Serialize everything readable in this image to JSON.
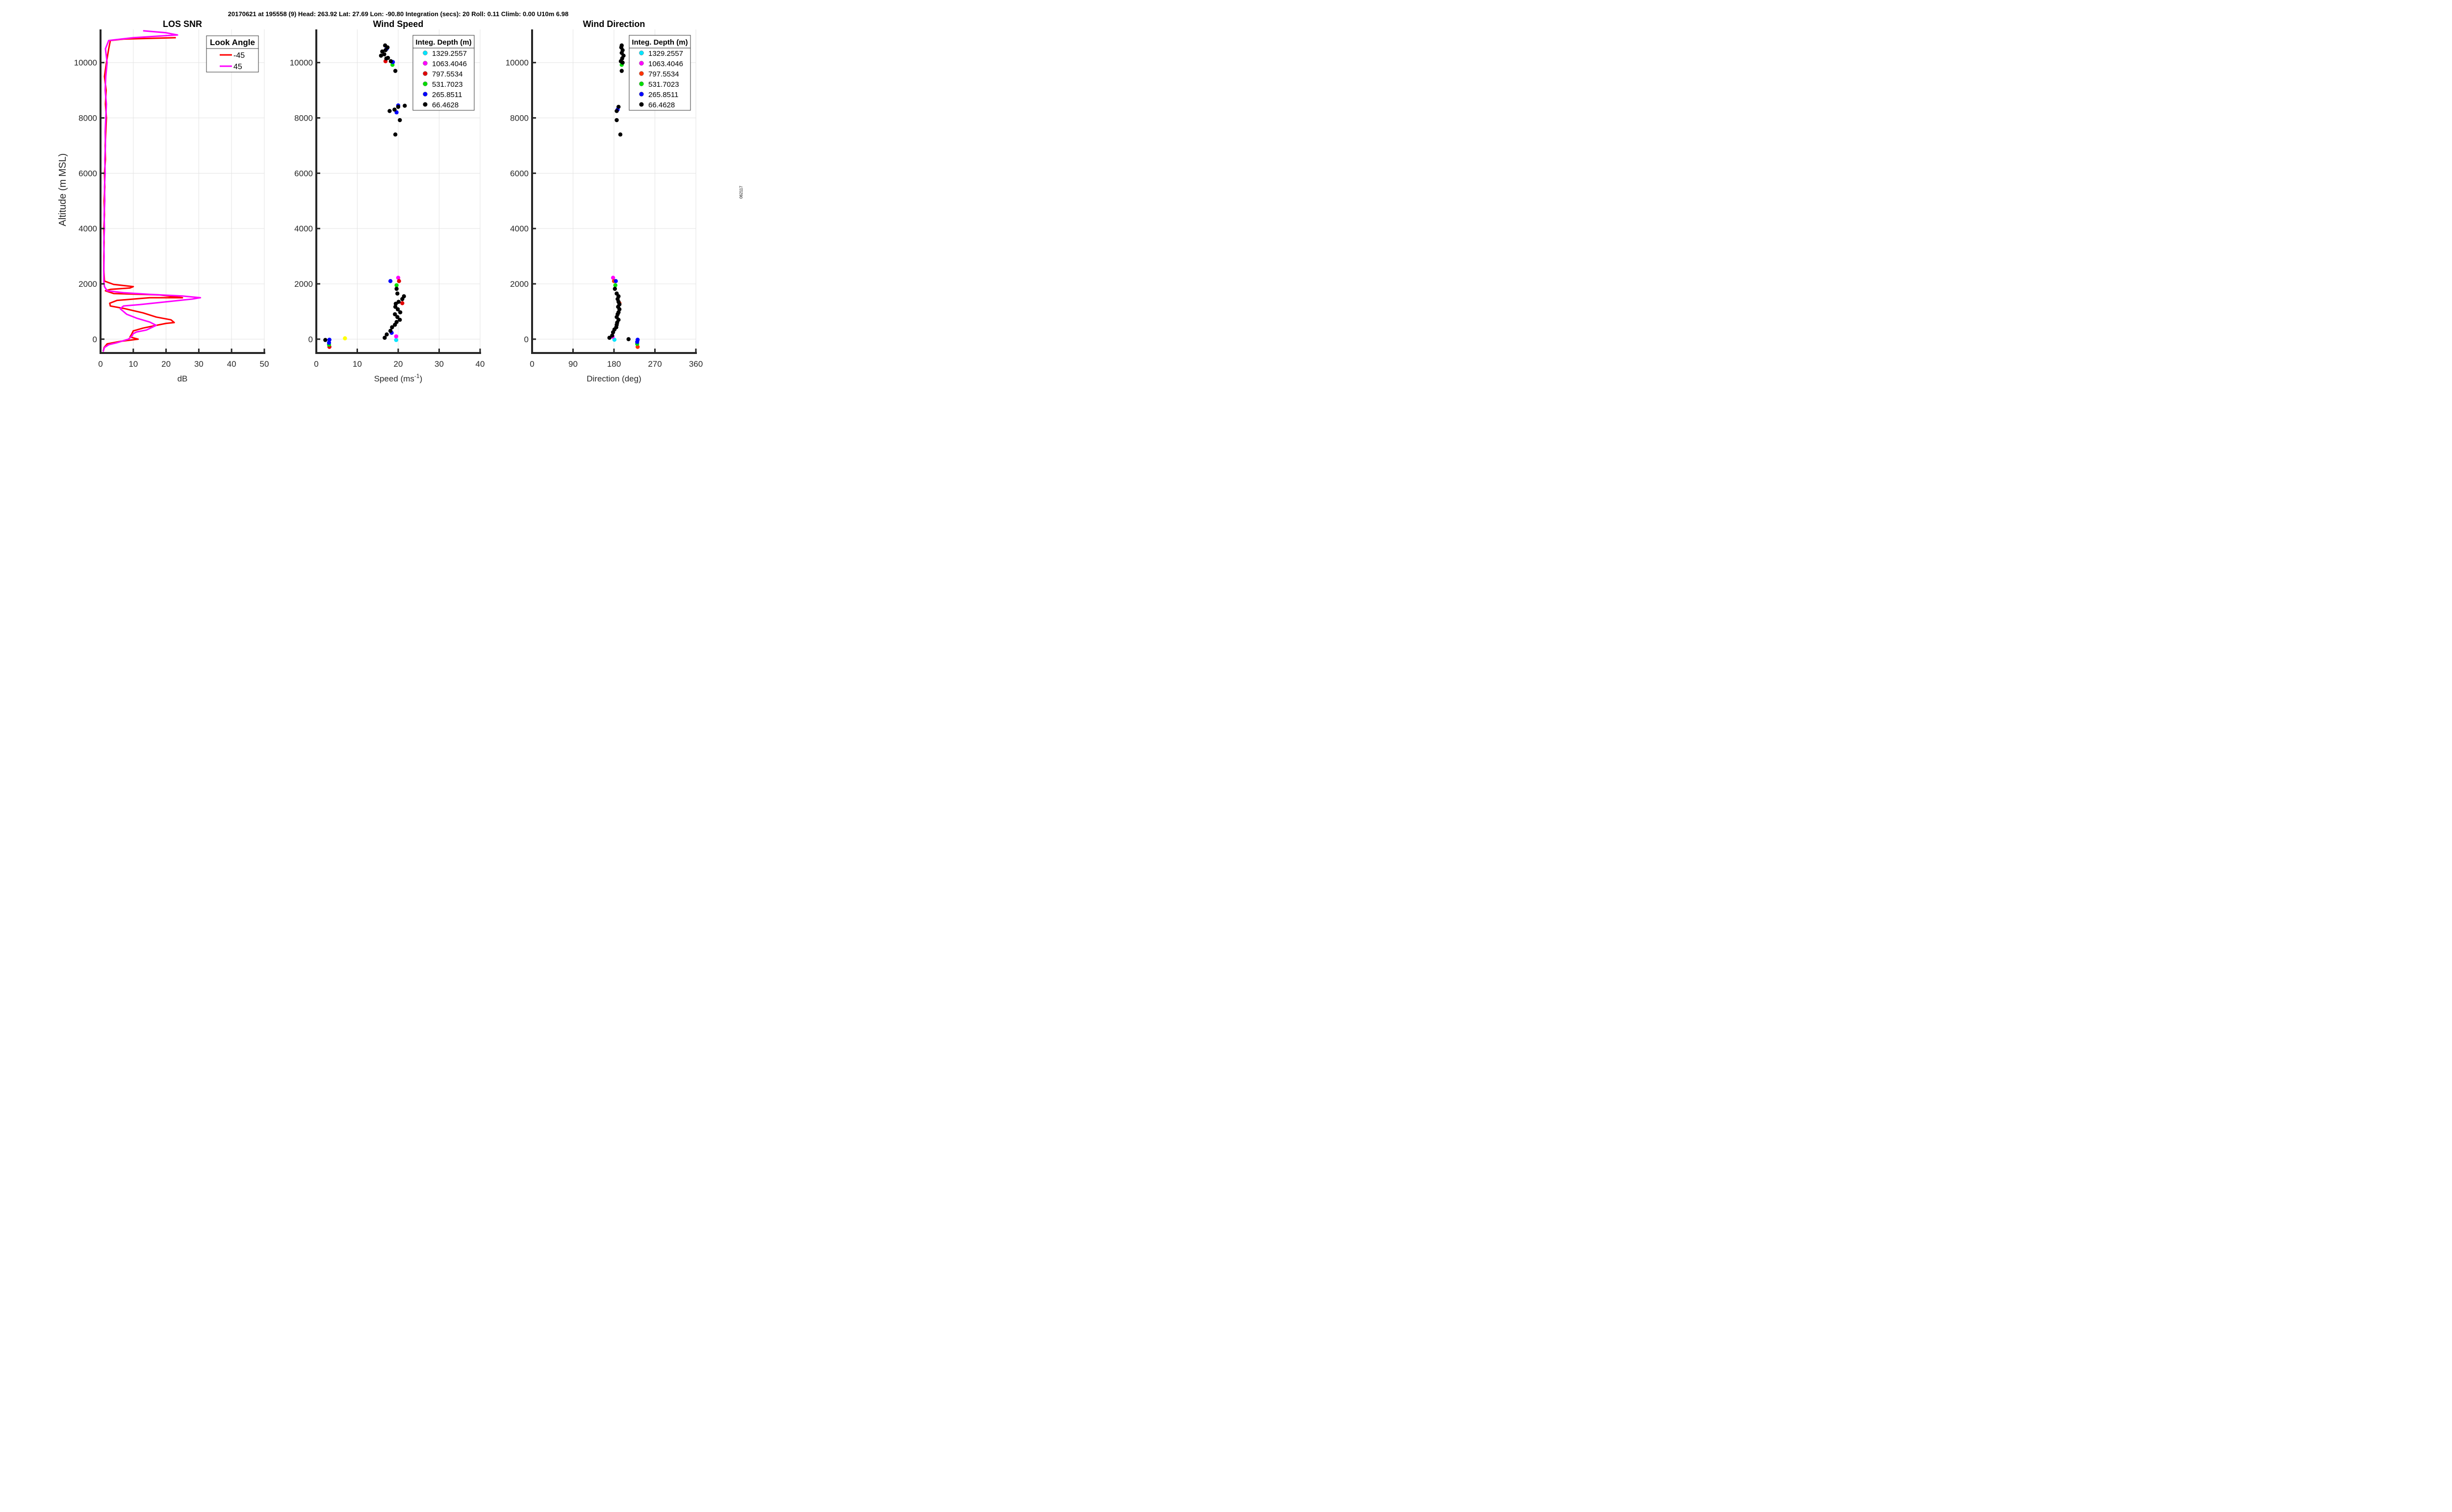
{
  "header": "20170621 at 195558 (9)  Head: 263.92  Lat: 27.69  Lon: -90.80  Integration (secs): 20  Roll: 0.11  Climb: 0.00  U10m 6.98",
  "side_label": "062117",
  "chart_data": [
    {
      "type": "line",
      "title": "LOS SNR",
      "xlabel": "dB",
      "ylabel": "Altitude (m MSL)",
      "xlim": [
        0,
        50
      ],
      "ylim": [
        -500,
        11200
      ],
      "xticks": [
        0,
        10,
        20,
        30,
        40,
        50
      ],
      "yticks": [
        0,
        2000,
        4000,
        6000,
        8000,
        10000
      ],
      "grid": true,
      "legend": {
        "title": "Look Angle",
        "placement": "top-right"
      },
      "series": [
        {
          "name": "-45",
          "color": "#ff0000",
          "points": [
            [
              0.8,
              -450
            ],
            [
              1.1,
              -300
            ],
            [
              2,
              -170
            ],
            [
              6,
              -80
            ],
            [
              11.5,
              0
            ],
            [
              9,
              80
            ],
            [
              9.5,
              180
            ],
            [
              10,
              300
            ],
            [
              13,
              400
            ],
            [
              17,
              500
            ],
            [
              20,
              570
            ],
            [
              22.5,
              600
            ],
            [
              21.5,
              700
            ],
            [
              17,
              800
            ],
            [
              13,
              950
            ],
            [
              7.5,
              1100
            ],
            [
              3,
              1200
            ],
            [
              2.8,
              1300
            ],
            [
              5,
              1400
            ],
            [
              15,
              1500
            ],
            [
              25,
              1500
            ],
            [
              18,
              1600
            ],
            [
              4,
              1650
            ],
            [
              1.5,
              1750
            ],
            [
              3,
              1800
            ],
            [
              9,
              1850
            ],
            [
              10,
              1900
            ],
            [
              4,
              1980
            ],
            [
              1.2,
              2100
            ],
            [
              1,
              2500
            ],
            [
              1,
              3000
            ],
            [
              1.1,
              3500
            ],
            [
              1,
              4000
            ],
            [
              1.2,
              4500
            ],
            [
              1.1,
              5000
            ],
            [
              1.3,
              5500
            ],
            [
              1.2,
              6000
            ],
            [
              1.5,
              6500
            ],
            [
              1.4,
              7000
            ],
            [
              1.6,
              7500
            ],
            [
              1.8,
              8000
            ],
            [
              1.5,
              8500
            ],
            [
              1.7,
              9000
            ],
            [
              1.2,
              9500
            ],
            [
              1.8,
              10000
            ],
            [
              2.5,
              10500
            ],
            [
              3,
              10800
            ],
            [
              7,
              10850
            ],
            [
              23,
              10900
            ]
          ]
        },
        {
          "name": "45",
          "color": "#ff00ff",
          "points": [
            [
              0.8,
              -450
            ],
            [
              1.2,
              -300
            ],
            [
              2.5,
              -200
            ],
            [
              5,
              -130
            ],
            [
              8.5,
              0
            ],
            [
              9.5,
              100
            ],
            [
              10,
              200
            ],
            [
              11,
              260
            ],
            [
              14,
              330
            ],
            [
              17,
              500
            ],
            [
              15,
              620
            ],
            [
              11,
              760
            ],
            [
              8,
              900
            ],
            [
              7,
              1000
            ],
            [
              6,
              1100
            ],
            [
              7,
              1200
            ],
            [
              12,
              1250
            ],
            [
              20,
              1350
            ],
            [
              28,
              1450
            ],
            [
              30.5,
              1500
            ],
            [
              25,
              1560
            ],
            [
              15,
              1620
            ],
            [
              7,
              1680
            ],
            [
              2,
              1750
            ],
            [
              1.2,
              1900
            ],
            [
              1,
              2100
            ],
            [
              1,
              2500
            ],
            [
              1.1,
              3000
            ],
            [
              1,
              3500
            ],
            [
              1.2,
              4000
            ],
            [
              1.1,
              4500
            ],
            [
              1.3,
              5000
            ],
            [
              1.2,
              5500
            ],
            [
              1.4,
              6000
            ],
            [
              1.3,
              6500
            ],
            [
              1.5,
              7000
            ],
            [
              1.4,
              7500
            ],
            [
              1.6,
              8000
            ],
            [
              1.8,
              8500
            ],
            [
              1.4,
              9000
            ],
            [
              1.6,
              9500
            ],
            [
              2,
              10000
            ],
            [
              1.5,
              10500
            ],
            [
              2.5,
              10800
            ],
            [
              10,
              10900
            ],
            [
              23.5,
              11000
            ],
            [
              20,
              11080
            ],
            [
              13,
              11150
            ]
          ]
        }
      ]
    },
    {
      "type": "scatter",
      "title": "Wind Speed",
      "xlabel": "Speed (ms",
      "xlabel_sup": "-1",
      "xlabel_end": ")",
      "xlim": [
        0,
        40
      ],
      "ylim": [
        -500,
        11200
      ],
      "xticks": [
        0,
        10,
        20,
        30,
        40
      ],
      "yticks": [
        0,
        2000,
        4000,
        6000,
        8000,
        10000
      ],
      "grid": true,
      "legend": {
        "title": "Integ. Depth (m)",
        "placement": "top-right"
      },
      "series": [
        {
          "name": "1329.2557",
          "color": "#00e5ff",
          "points": [
            [
              19.5,
              -30
            ]
          ]
        },
        {
          "name": "1063.4046",
          "color": "#ff00ff",
          "points": [
            [
              19.5,
              100
            ],
            [
              20,
              2220
            ]
          ]
        },
        {
          "name": "797.5534",
          "color": "#e00000",
          "points": [
            [
              3.2,
              -280
            ],
            [
              20.2,
              2100
            ],
            [
              21,
              1300
            ],
            [
              16.9,
              10050
            ]
          ]
        },
        {
          "name": "531.7023",
          "color": "#00dd00",
          "points": [
            [
              3.1,
              -200
            ],
            [
              19.6,
              1950
            ],
            [
              18.6,
              9920
            ]
          ]
        },
        {
          "name": "265.8511",
          "color": "#0000ff",
          "points": [
            [
              3.2,
              -20
            ],
            [
              3.1,
              -130
            ],
            [
              18.1,
              2100
            ],
            [
              18.4,
              230
            ],
            [
              20,
              8450
            ],
            [
              19.6,
              8200
            ],
            [
              18.7,
              10020
            ],
            [
              17.2,
              10500
            ]
          ]
        },
        {
          "name": "66.4628",
          "color": "#000000",
          "points": [
            [
              2.2,
              -30
            ],
            [
              16.7,
              50
            ],
            [
              17.2,
              170
            ],
            [
              18.1,
              300
            ],
            [
              18.5,
              430
            ],
            [
              19.2,
              520
            ],
            [
              19.6,
              620
            ],
            [
              20.4,
              700
            ],
            [
              19.8,
              800
            ],
            [
              19.2,
              900
            ],
            [
              20.5,
              970
            ],
            [
              19.9,
              1080
            ],
            [
              19.3,
              1170
            ],
            [
              19.4,
              1280
            ],
            [
              20.1,
              1350
            ],
            [
              21,
              1450
            ],
            [
              21.4,
              1550
            ],
            [
              19.8,
              1650
            ],
            [
              19.6,
              1820
            ],
            [
              17.9,
              8250
            ],
            [
              19.1,
              8300
            ],
            [
              20,
              8400
            ],
            [
              21.6,
              8440
            ],
            [
              20.4,
              7920
            ],
            [
              19.3,
              7400
            ],
            [
              19.3,
              9700
            ],
            [
              18.2,
              10050
            ],
            [
              17.5,
              10170
            ],
            [
              15.8,
              10250
            ],
            [
              16.6,
              10300
            ],
            [
              16.1,
              10400
            ],
            [
              16.9,
              10450
            ],
            [
              17.4,
              10550
            ],
            [
              16.8,
              10620
            ],
            [
              17.1,
              10150
            ]
          ]
        }
      ],
      "extra_points": [
        {
          "x": 7,
          "y": 30,
          "color": "#ffff00"
        }
      ]
    },
    {
      "type": "scatter",
      "title": "Wind Direction",
      "xlabel": "Direction (deg)",
      "xlim": [
        0,
        360
      ],
      "ylim": [
        -500,
        11200
      ],
      "xticks": [
        0,
        90,
        180,
        270,
        360
      ],
      "yticks": [
        0,
        2000,
        4000,
        6000,
        8000,
        10000
      ],
      "grid": true,
      "legend": {
        "title": "Integ. Depth (m)",
        "placement": "top-right"
      },
      "series": [
        {
          "name": "1329.2557",
          "color": "#00e5ff",
          "points": [
            [
              181,
              -20
            ]
          ]
        },
        {
          "name": "1063.4046",
          "color": "#ff00ff",
          "points": [
            [
              177,
              90
            ],
            [
              178,
              2220
            ]
          ]
        },
        {
          "name": "797.5534",
          "color": "#ff3300",
          "points": [
            [
              232,
              -280
            ],
            [
              180,
              2100
            ],
            [
              192,
              1300
            ]
          ]
        },
        {
          "name": "531.7023",
          "color": "#00dd00",
          "points": [
            [
              231,
              -170
            ],
            [
              183,
              1950
            ],
            [
              197,
              9920
            ]
          ]
        },
        {
          "name": "265.8511",
          "color": "#0000ff",
          "points": [
            [
              232,
              -20
            ],
            [
              231,
              -100
            ],
            [
              184,
              2100
            ],
            [
              188,
              8300
            ]
          ]
        },
        {
          "name": "66.4628",
          "color": "#000000",
          "points": [
            [
              170,
              50
            ],
            [
              176,
              130
            ],
            [
              178,
              250
            ],
            [
              181,
              350
            ],
            [
              185,
              430
            ],
            [
              186,
              520
            ],
            [
              187,
              600
            ],
            [
              190,
              700
            ],
            [
              186,
              800
            ],
            [
              188,
              900
            ],
            [
              190,
              970
            ],
            [
              192,
              1080
            ],
            [
              189,
              1170
            ],
            [
              192,
              1260
            ],
            [
              190,
              1350
            ],
            [
              188,
              1450
            ],
            [
              190,
              1550
            ],
            [
              186,
              1650
            ],
            [
              182,
              1820
            ],
            [
              212,
              0
            ],
            [
              186,
              8250
            ],
            [
              190,
              8400
            ],
            [
              186,
              7920
            ],
            [
              194,
              7400
            ],
            [
              197,
              9700
            ],
            [
              199,
              10000
            ],
            [
              195,
              10050
            ],
            [
              198,
              10150
            ],
            [
              201,
              10250
            ],
            [
              197,
              10350
            ],
            [
              199,
              10450
            ],
            [
              196,
              10550
            ],
            [
              197,
              10620
            ]
          ]
        }
      ]
    }
  ]
}
